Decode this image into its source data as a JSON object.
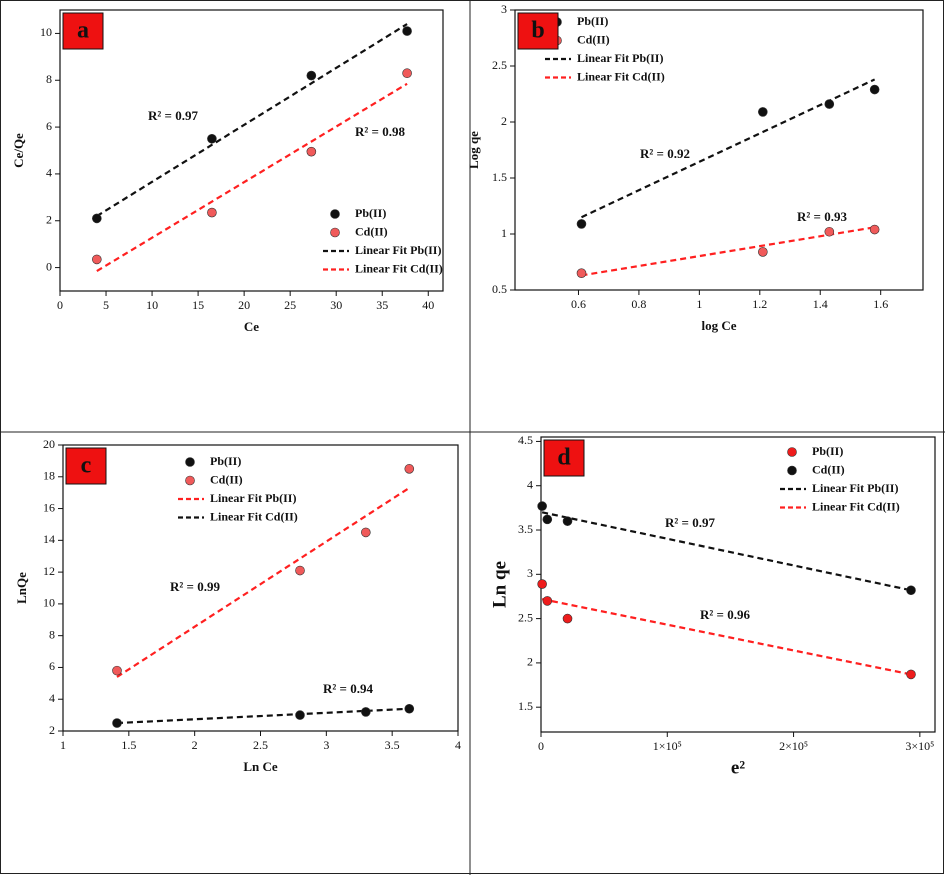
{
  "chart_data": [
    {
      "type": "scatter",
      "panel_label": "a",
      "xlabel": "Ce",
      "ylabel": "Ce/Qe",
      "xlim": [
        0,
        41.6
      ],
      "ylim": [
        -1,
        11
      ],
      "xticks": [
        0,
        5,
        10,
        15,
        20,
        25,
        30,
        35,
        40
      ],
      "yticks": [
        0,
        2,
        4,
        6,
        8,
        10
      ],
      "legend": "center right",
      "series": [
        {
          "name": "Pb(II)",
          "color": "#111111",
          "marker": "circle",
          "x": [
            4,
            16.5,
            27.3,
            37.7
          ],
          "values": [
            2.1,
            5.5,
            8.2,
            10.1
          ]
        },
        {
          "name": "Cd(II)",
          "color": "#f05a5a",
          "marker": "circle",
          "x": [
            4,
            16.5,
            27.3,
            37.7
          ],
          "values": [
            0.35,
            2.35,
            4.95,
            8.3
          ]
        },
        {
          "name": "Linear Fit Pb(II)",
          "color": "#111111",
          "linestyle": "dashed",
          "x": [
            4,
            37.7
          ],
          "values": [
            2.2,
            10.4
          ]
        },
        {
          "name": "Linear Fit Cd(II)",
          "color": "#ff2020",
          "linestyle": "dashed",
          "x": [
            4,
            37.7
          ],
          "values": [
            -0.15,
            7.85
          ]
        }
      ],
      "annotations": [
        "R² = 0.97",
        "R² = 0.98"
      ]
    },
    {
      "type": "scatter",
      "panel_label": "b",
      "xlabel": "log Ce",
      "ylabel": "Log qe",
      "xlim": [
        0.39,
        1.74
      ],
      "ylim": [
        0.5,
        3.0
      ],
      "xticks": [
        0.6,
        0.8,
        1.0,
        1.2,
        1.4,
        1.6
      ],
      "yticks": [
        0.5,
        1.0,
        1.5,
        2.0,
        2.5,
        3.0
      ],
      "legend": "upper left",
      "series": [
        {
          "name": "Pb(II)",
          "color": "#111111",
          "marker": "circle",
          "x": [
            0.61,
            1.21,
            1.43,
            1.58
          ],
          "values": [
            1.09,
            2.09,
            2.16,
            2.29
          ]
        },
        {
          "name": "Cd(II)",
          "color": "#f05a5a",
          "marker": "circle",
          "x": [
            0.61,
            1.21,
            1.43,
            1.58
          ],
          "values": [
            0.65,
            0.84,
            1.02,
            1.04
          ]
        },
        {
          "name": "Linear Fit Pb(II)",
          "color": "#111111",
          "linestyle": "dashed",
          "x": [
            0.61,
            1.58
          ],
          "values": [
            1.15,
            2.38
          ]
        },
        {
          "name": "Linear Fit Cd(II)",
          "color": "#ff2020",
          "linestyle": "dashed",
          "x": [
            0.61,
            1.58
          ],
          "values": [
            0.63,
            1.06
          ]
        }
      ],
      "annotations": [
        "R² = 0.92",
        "R² = 0.93"
      ]
    },
    {
      "type": "scatter",
      "panel_label": "c",
      "xlabel": "Ln Ce",
      "ylabel": "LnQe",
      "xlim": [
        1.0,
        4.0
      ],
      "ylim": [
        2,
        20
      ],
      "xticks": [
        1.0,
        1.5,
        2.0,
        2.5,
        3.0,
        3.5,
        4.0
      ],
      "yticks": [
        2,
        4,
        6,
        8,
        10,
        12,
        14,
        16,
        18,
        20
      ],
      "legend": "upper center",
      "series": [
        {
          "name": "Pb(II)",
          "color": "#111111",
          "marker": "circle",
          "x": [
            1.41,
            2.8,
            3.3,
            3.63
          ],
          "values": [
            2.5,
            3.0,
            3.2,
            3.4
          ]
        },
        {
          "name": "Cd(II)",
          "color": "#f05a5a",
          "marker": "circle",
          "x": [
            1.41,
            2.8,
            3.3,
            3.63
          ],
          "values": [
            5.8,
            12.1,
            14.5,
            18.5
          ]
        },
        {
          "name": "Linear Fit Pb(II)",
          "color": "#ff2020",
          "linestyle": "dashed",
          "x": [
            1.41,
            3.63
          ],
          "values": [
            5.4,
            17.3
          ]
        },
        {
          "name": "Linear Fit Cd(II)",
          "color": "#111111",
          "linestyle": "dashed",
          "x": [
            1.41,
            3.63
          ],
          "values": [
            2.5,
            3.4
          ]
        }
      ],
      "annotations": [
        "R² = 0.99",
        "R² = 0.94"
      ]
    },
    {
      "type": "scatter",
      "panel_label": "d",
      "xlabel": "e²",
      "ylabel": "Ln qe",
      "xlim": [
        0,
        312000
      ],
      "ylim": [
        1.22,
        4.55
      ],
      "xticks": [
        0,
        {
          "value": 100000,
          "label": "1×10⁵"
        },
        {
          "value": 200000,
          "label": "2×10⁵"
        },
        {
          "value": 300000,
          "label": "3×10⁵"
        }
      ],
      "yticks": [
        1.5,
        2.0,
        2.5,
        3.0,
        3.5,
        4.0,
        4.5
      ],
      "legend": "upper right",
      "series": [
        {
          "name": "Pb(II)",
          "color": "#ee1c1c",
          "marker": "circle",
          "x": [
            900,
            5000,
            21000,
            293000
          ],
          "values": [
            2.89,
            2.7,
            2.5,
            1.87
          ]
        },
        {
          "name": "Cd(II)",
          "color": "#111111",
          "marker": "circle",
          "x": [
            900,
            5000,
            21000,
            293000
          ],
          "values": [
            3.77,
            3.62,
            3.6,
            2.82
          ]
        },
        {
          "name": "Linear Fit Pb(II)",
          "color": "#111111",
          "linestyle": "dashed",
          "x": [
            900,
            293000
          ],
          "values": [
            3.7,
            2.82
          ]
        },
        {
          "name": "Linear Fit Cd(II)",
          "color": "#ff2020",
          "linestyle": "dashed",
          "x": [
            900,
            293000
          ],
          "values": [
            2.72,
            1.87
          ]
        }
      ],
      "annotations": [
        "R² = 0.97",
        "R² = 0.96"
      ]
    }
  ]
}
